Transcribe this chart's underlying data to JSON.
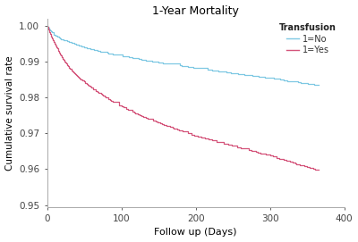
{
  "title": "1-Year Mortality",
  "xlabel": "Follow up (Days)",
  "ylabel": "Cumulative survival rate",
  "xlim": [
    0,
    400
  ],
  "ylim": [
    0.9495,
    1.002
  ],
  "yticks": [
    0.95,
    0.96,
    0.97,
    0.98,
    0.99,
    1.0
  ],
  "xticks": [
    0,
    100,
    200,
    300,
    400
  ],
  "color_no": "#7ec8e3",
  "color_yes": "#d4547a",
  "legend_title": "Transfusion",
  "legend_no": "1=No",
  "legend_yes": "1=Yes",
  "bg_color": "#ffffff",
  "title_fontsize": 9,
  "axis_fontsize": 8,
  "tick_fontsize": 7.5
}
